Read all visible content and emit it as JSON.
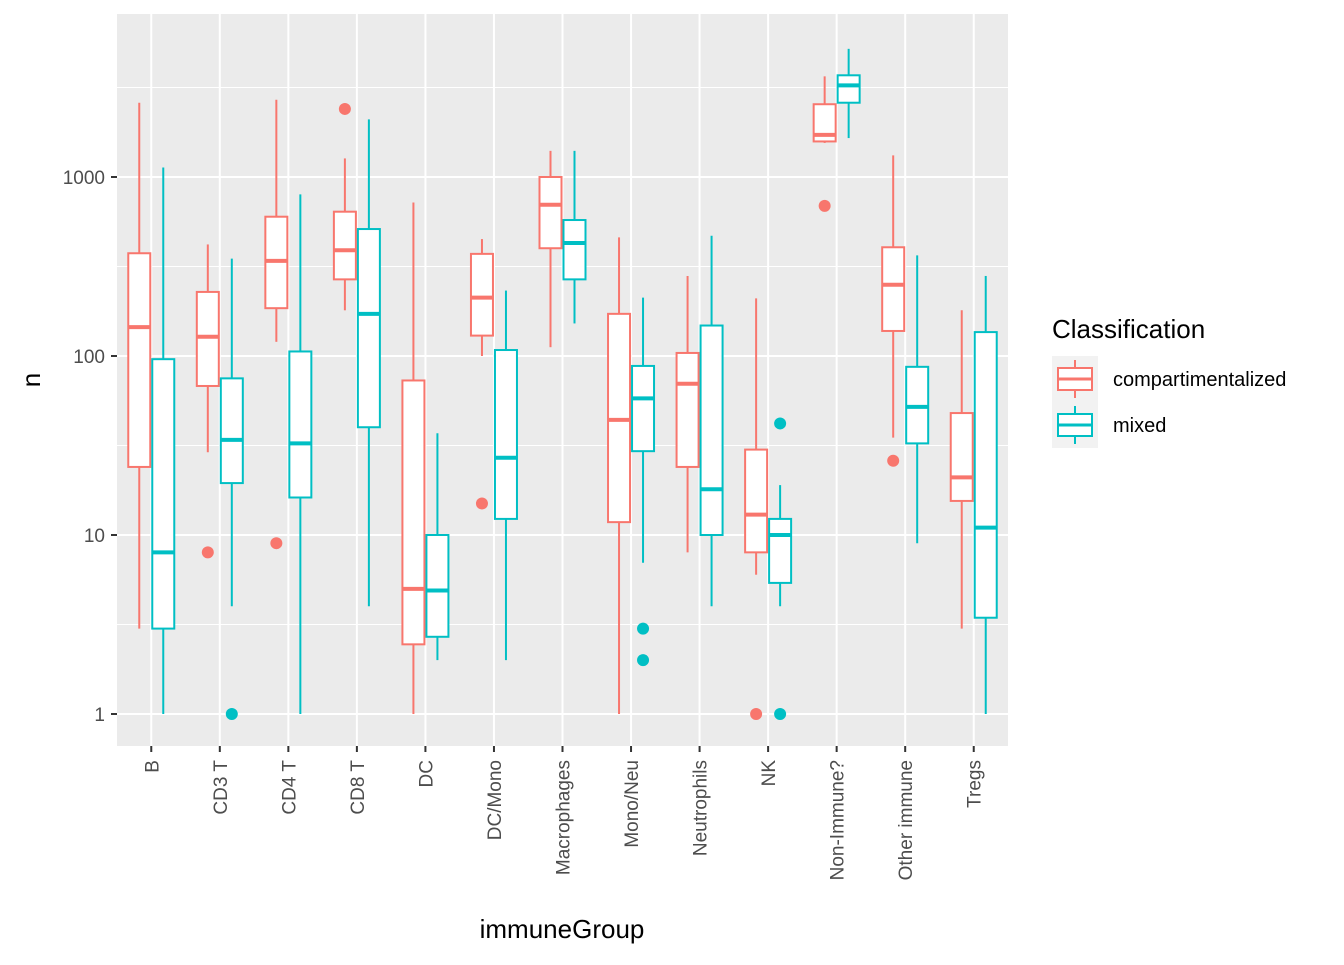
{
  "chart_data": {
    "type": "box",
    "xlabel": "immuneGroup",
    "ylabel": "n",
    "y_scale": "log10",
    "ylim": [
      0.66,
      8000
    ],
    "y_ticks": [
      1,
      10,
      100,
      1000
    ],
    "y_tick_labels": [
      "1",
      "10",
      "100",
      "1000"
    ],
    "grid": true,
    "legend_position": "right",
    "legend": {
      "title": "Classification",
      "entries": [
        {
          "name": "compartimentalized",
          "color": "#F8766D"
        },
        {
          "name": "mixed",
          "color": "#00BFC4"
        }
      ]
    },
    "categories": [
      "B",
      "CD3 T",
      "CD4 T",
      "CD8 T",
      "DC",
      "DC/Mono",
      "Macrophages",
      "Mono/Neu",
      "Neutrophils",
      "NK",
      "Non-Immune?",
      "Other immune",
      "Tregs"
    ],
    "series": [
      {
        "name": "compartimentalized",
        "color": "#F8766D",
        "boxes": [
          {
            "whisker_low": 3,
            "q1": 24,
            "median": 145,
            "q3": 375,
            "whisker_high": 2600,
            "outliers": []
          },
          {
            "whisker_low": 29,
            "q1": 68,
            "median": 128,
            "q3": 228,
            "whisker_high": 420,
            "outliers": [
              8
            ]
          },
          {
            "whisker_low": 120,
            "q1": 185,
            "median": 340,
            "q3": 600,
            "whisker_high": 2700,
            "outliers": [
              9
            ]
          },
          {
            "whisker_low": 180,
            "q1": 268,
            "median": 390,
            "q3": 640,
            "whisker_high": 1270,
            "outliers": [
              2400
            ]
          },
          {
            "whisker_low": 1,
            "q1": 2.45,
            "median": 5,
            "q3": 73,
            "whisker_high": 720,
            "outliers": []
          },
          {
            "whisker_low": 100,
            "q1": 130,
            "median": 212,
            "q3": 372,
            "whisker_high": 450,
            "outliers": [
              15
            ]
          },
          {
            "whisker_low": 112,
            "q1": 400,
            "median": 700,
            "q3": 1000,
            "whisker_high": 1400,
            "outliers": []
          },
          {
            "whisker_low": 1,
            "q1": 11.8,
            "median": 44,
            "q3": 172,
            "whisker_high": 460,
            "outliers": []
          },
          {
            "whisker_low": 8,
            "q1": 24,
            "median": 70,
            "q3": 104,
            "whisker_high": 280,
            "outliers": []
          },
          {
            "whisker_low": 6,
            "q1": 8,
            "median": 13,
            "q3": 30,
            "whisker_high": 210,
            "outliers": [
              1
            ]
          },
          {
            "whisker_low": 1550,
            "q1": 1580,
            "median": 1720,
            "q3": 2550,
            "whisker_high": 3650,
            "outliers": [
              690
            ]
          },
          {
            "whisker_low": 35,
            "q1": 138,
            "median": 250,
            "q3": 405,
            "whisker_high": 1320,
            "outliers": [
              26
            ]
          },
          {
            "whisker_low": 3,
            "q1": 15.5,
            "median": 21,
            "q3": 48,
            "whisker_high": 180,
            "outliers": []
          }
        ]
      },
      {
        "name": "mixed",
        "color": "#00BFC4",
        "boxes": [
          {
            "whisker_low": 1,
            "q1": 3,
            "median": 8,
            "q3": 96,
            "whisker_high": 1130,
            "outliers": []
          },
          {
            "whisker_low": 4,
            "q1": 19.5,
            "median": 34,
            "q3": 75,
            "whisker_high": 350,
            "outliers": [
              1
            ]
          },
          {
            "whisker_low": 1,
            "q1": 16.2,
            "median": 32.5,
            "q3": 106,
            "whisker_high": 800,
            "outliers": []
          },
          {
            "whisker_low": 4,
            "q1": 40,
            "median": 172,
            "q3": 512,
            "whisker_high": 2100,
            "outliers": []
          },
          {
            "whisker_low": 2,
            "q1": 2.7,
            "median": 4.9,
            "q3": 10,
            "whisker_high": 37,
            "outliers": []
          },
          {
            "whisker_low": 2,
            "q1": 12.3,
            "median": 27,
            "q3": 108,
            "whisker_high": 232,
            "outliers": []
          },
          {
            "whisker_low": 152,
            "q1": 268,
            "median": 428,
            "q3": 575,
            "whisker_high": 1400,
            "outliers": []
          },
          {
            "whisker_low": 7,
            "q1": 29.4,
            "median": 58,
            "q3": 88,
            "whisker_high": 212,
            "outliers": [
              3,
              2
            ]
          },
          {
            "whisker_low": 4,
            "q1": 10,
            "median": 18,
            "q3": 148,
            "whisker_high": 470,
            "outliers": []
          },
          {
            "whisker_low": 4,
            "q1": 5.4,
            "median": 10,
            "q3": 12.3,
            "whisker_high": 19,
            "outliers": [
              42,
              1
            ]
          },
          {
            "whisker_low": 1650,
            "q1": 2600,
            "median": 3250,
            "q3": 3700,
            "whisker_high": 5200,
            "outliers": []
          },
          {
            "whisker_low": 9,
            "q1": 32.5,
            "median": 52,
            "q3": 87,
            "whisker_high": 365,
            "outliers": []
          },
          {
            "whisker_low": 1,
            "q1": 3.45,
            "median": 11,
            "q3": 136,
            "whisker_high": 280,
            "outliers": []
          }
        ]
      }
    ]
  }
}
